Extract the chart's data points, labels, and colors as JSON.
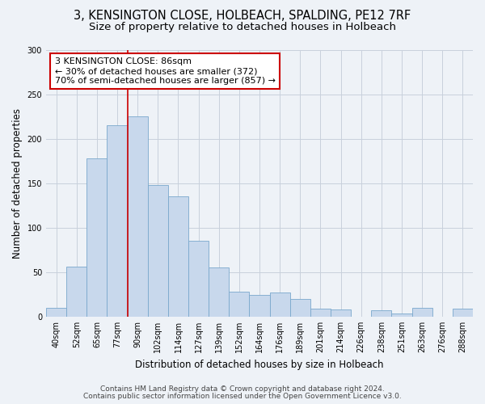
{
  "title_line1": "3, KENSINGTON CLOSE, HOLBEACH, SPALDING, PE12 7RF",
  "title_line2": "Size of property relative to detached houses in Holbeach",
  "xlabel": "Distribution of detached houses by size in Holbeach",
  "ylabel": "Number of detached properties",
  "bar_labels": [
    "40sqm",
    "52sqm",
    "65sqm",
    "77sqm",
    "90sqm",
    "102sqm",
    "114sqm",
    "127sqm",
    "139sqm",
    "152sqm",
    "164sqm",
    "176sqm",
    "189sqm",
    "201sqm",
    "214sqm",
    "226sqm",
    "238sqm",
    "251sqm",
    "263sqm",
    "276sqm",
    "288sqm"
  ],
  "bar_values": [
    10,
    56,
    178,
    215,
    225,
    148,
    135,
    85,
    55,
    28,
    24,
    27,
    20,
    9,
    8,
    0,
    7,
    4,
    10,
    0,
    9
  ],
  "bar_color": "#c8d8ec",
  "bar_edge_color": "#7aa8cc",
  "vline_x_index": 3,
  "vline_color": "#cc0000",
  "annotation_box_text": "3 KENSINGTON CLOSE: 86sqm\n← 30% of detached houses are smaller (372)\n70% of semi-detached houses are larger (857) →",
  "box_color": "#ffffff",
  "box_edge_color": "#cc0000",
  "ylim": [
    0,
    300
  ],
  "yticks": [
    0,
    50,
    100,
    150,
    200,
    250,
    300
  ],
  "footer_line1": "Contains HM Land Registry data © Crown copyright and database right 2024.",
  "footer_line2": "Contains public sector information licensed under the Open Government Licence v3.0.",
  "background_color": "#eef2f7",
  "plot_background_color": "#eef2f7",
  "grid_color": "#c8d0dc",
  "title_fontsize": 10.5,
  "subtitle_fontsize": 9.5,
  "axis_label_fontsize": 8.5,
  "tick_fontsize": 7,
  "annotation_fontsize": 8,
  "footer_fontsize": 6.5
}
